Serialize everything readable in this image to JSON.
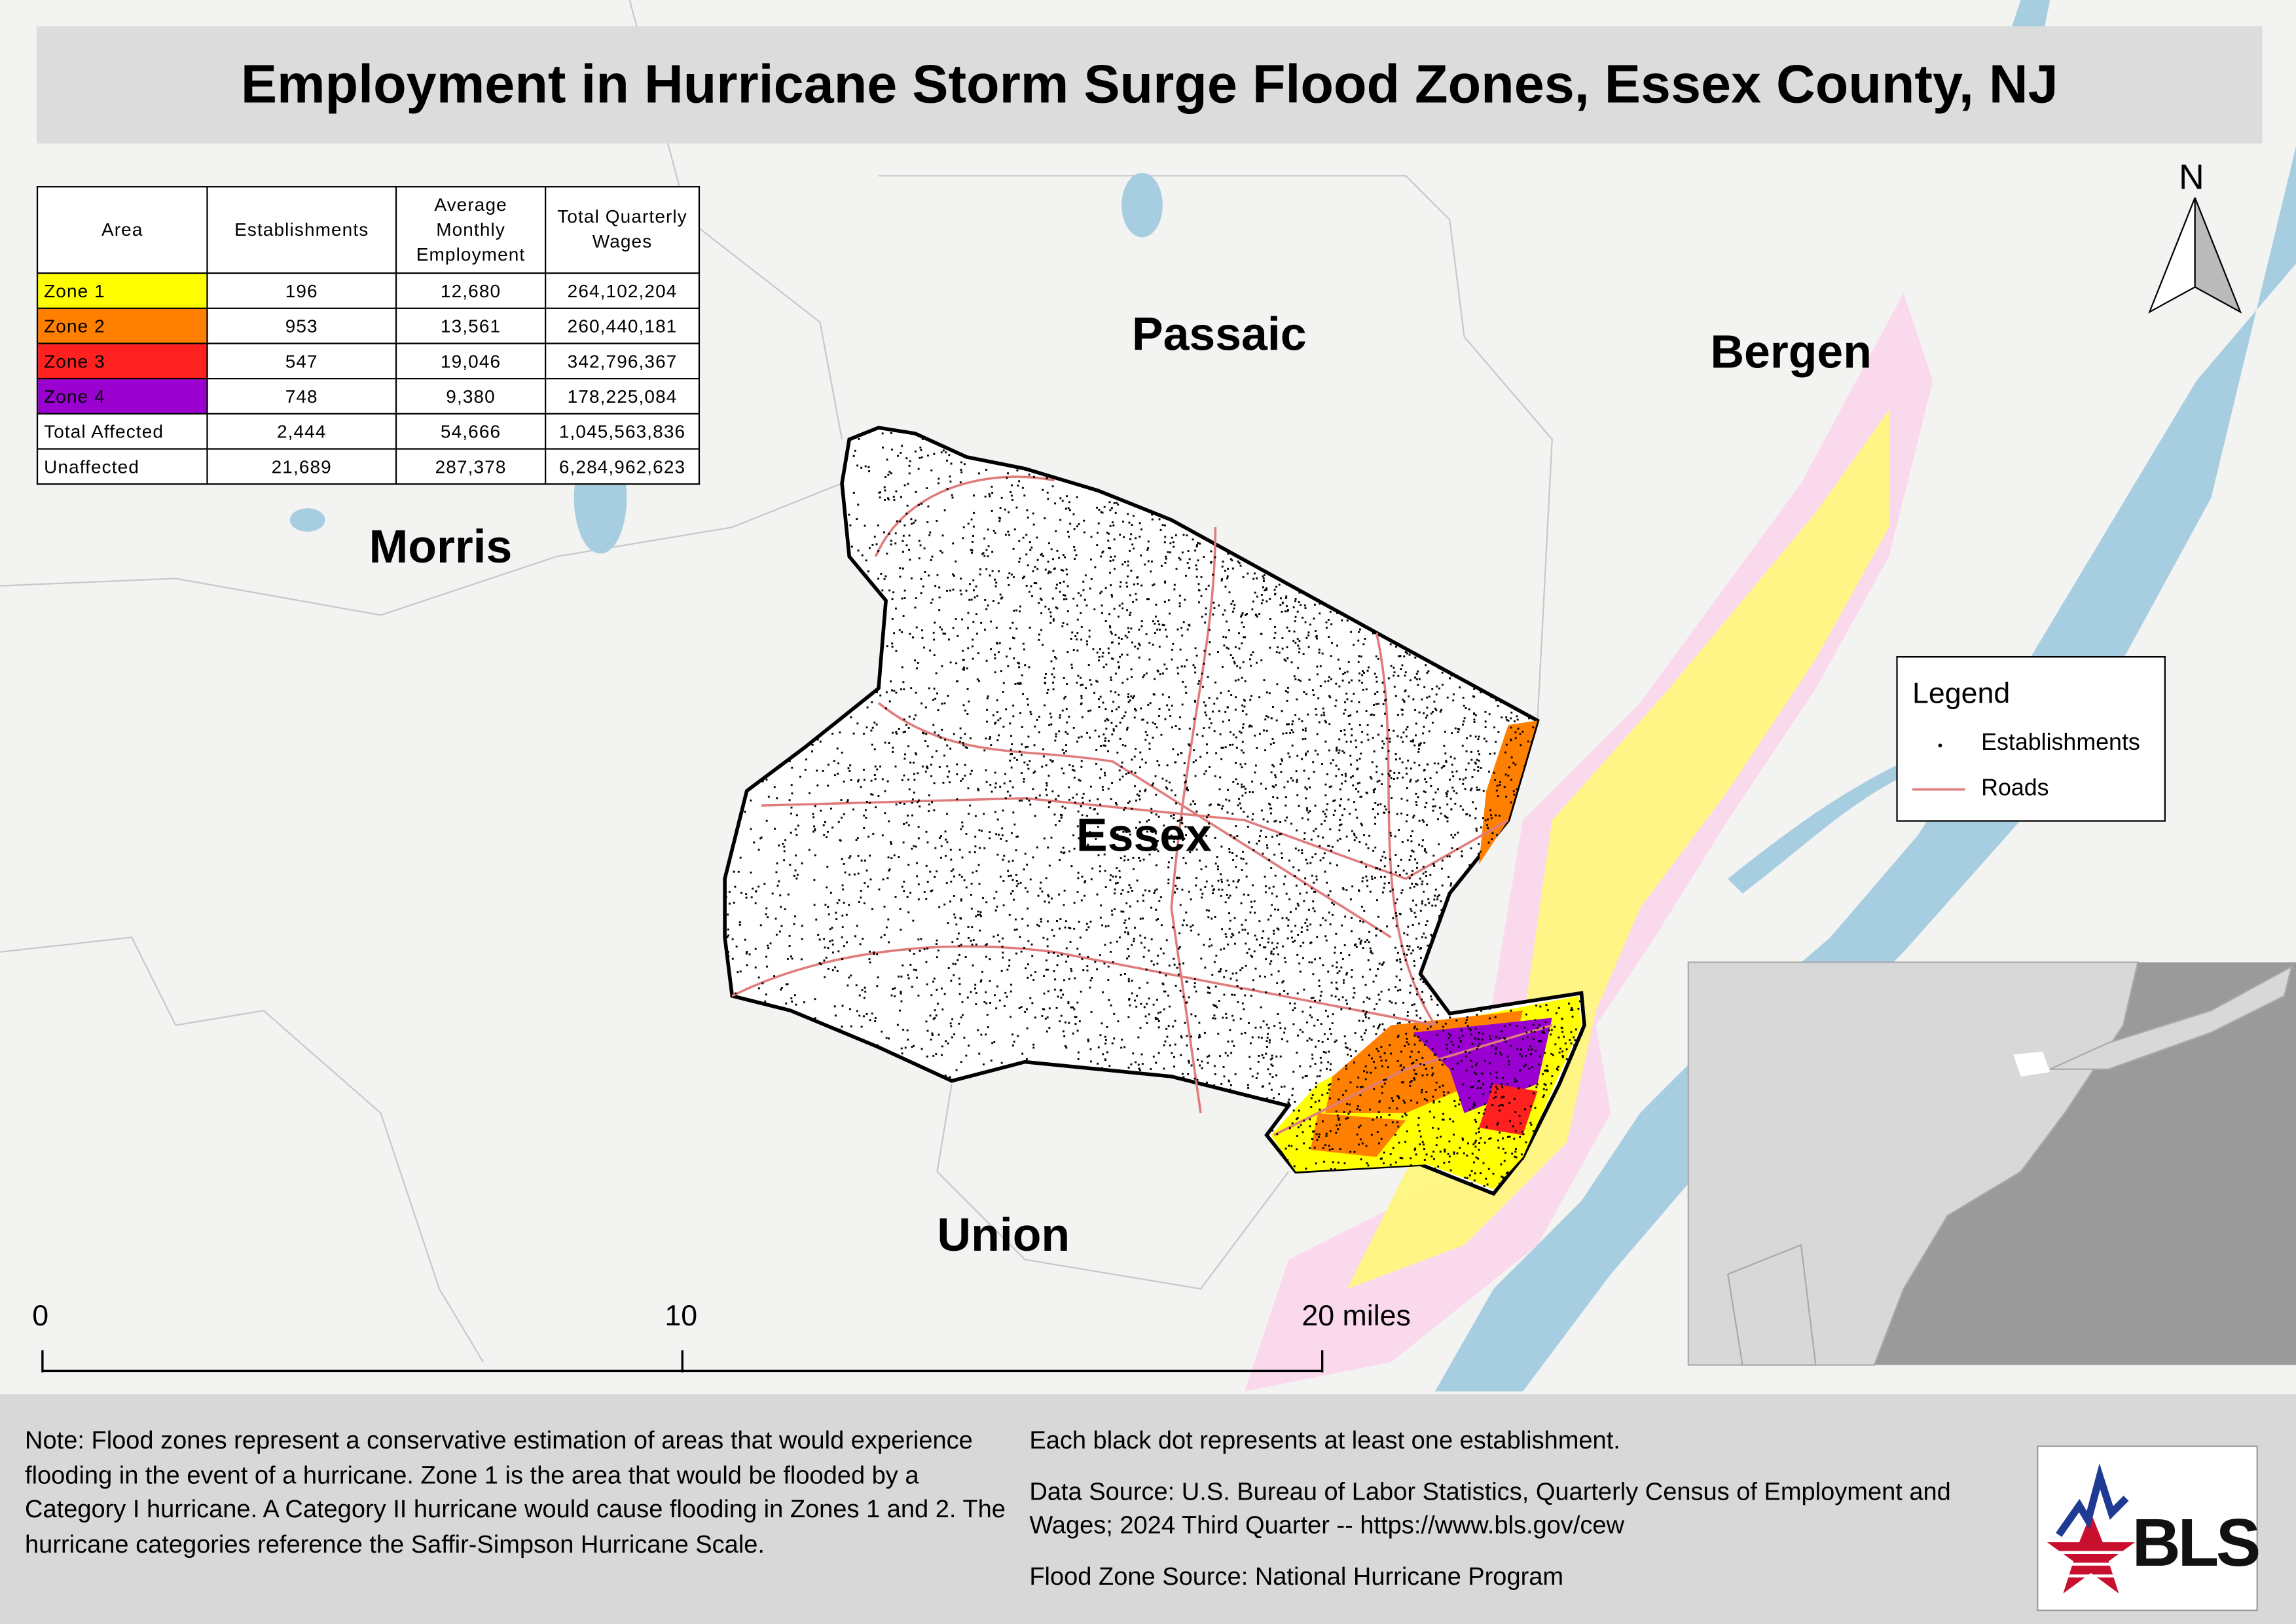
{
  "title": "Employment in Hurricane Storm Surge Flood Zones, Essex County, NJ",
  "table": {
    "header": [
      "Area",
      "Establishments",
      "Average Monthly Employment",
      "Total Quarterly Wages"
    ],
    "rows": [
      [
        "Zone 1",
        "196",
        "12,680",
        "264,102,204"
      ],
      [
        "Zone 2",
        "953",
        "13,561",
        "260,440,181"
      ],
      [
        "Zone 3",
        "547",
        "19,046",
        "342,796,367"
      ],
      [
        "Zone 4",
        "748",
        "9,380",
        "178,225,084"
      ],
      [
        "Total Affected",
        "2,444",
        "54,666",
        "1,045,563,836"
      ],
      [
        "Unaffected",
        "21,689",
        "287,378",
        "6,284,962,623"
      ]
    ]
  },
  "map_labels": [
    "Passaic",
    "Bergen",
    "Morris",
    "Essex",
    "Union"
  ],
  "north_arrow": "N",
  "legend": {
    "title": "Legend",
    "items": [
      "Establishments",
      "Roads"
    ]
  },
  "scale_bar": [
    "0",
    "10",
    "20 miles"
  ],
  "notes": {
    "left": "Note: Flood zones represent a conservative estimation of areas that would experience flooding in the event of a hurricane. Zone 1 is the area that would be flooded by a Category I hurricane. A Category II hurricane would cause flooding in Zones 1 and 2. The hurricane categories reference the Saffir-Simpson Hurricane Scale.",
    "right": [
      "Each black dot represents at least one establishment.",
      "Data Source: U.S. Bureau of Labor Statistics, Quarterly Census of Employment and Wages; 2024 Third Quarter -- https://www.bls.gov/cew",
      "Flood Zone Source: National Hurricane Program"
    ]
  },
  "logo": "BLS"
}
